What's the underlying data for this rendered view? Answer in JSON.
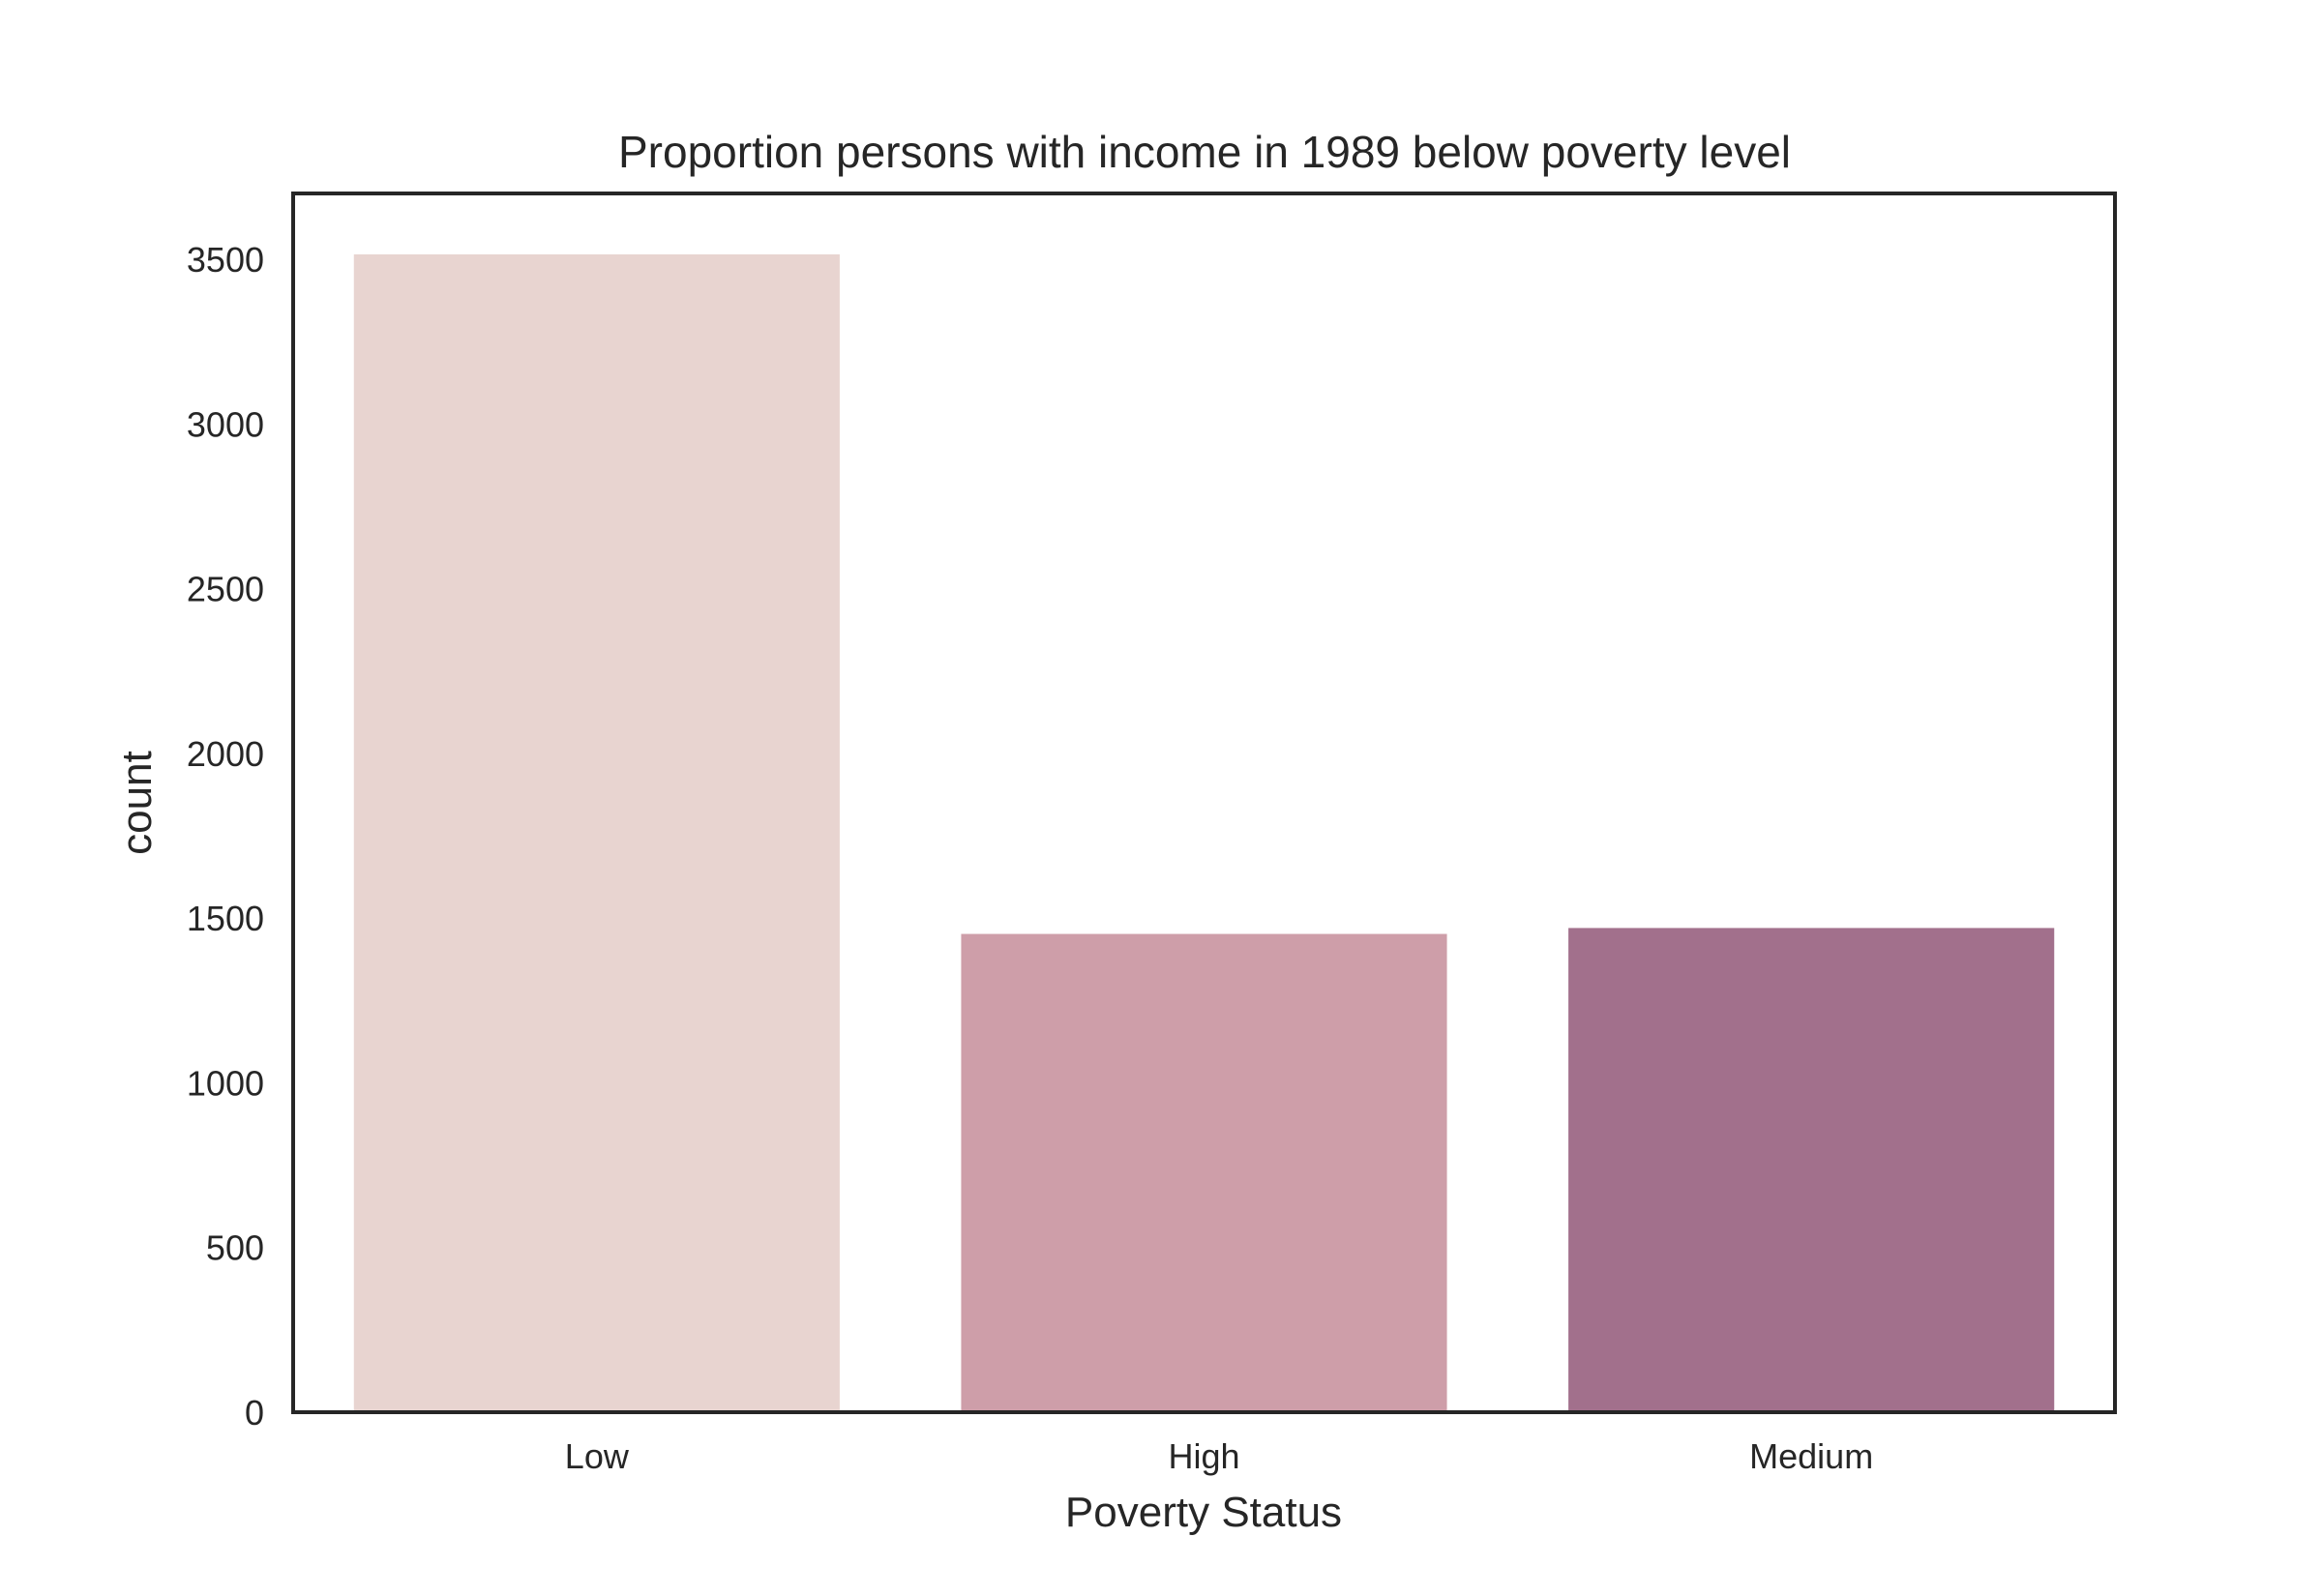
{
  "chart_data": {
    "type": "bar",
    "title": "Proportion persons with income in 1989 below poverty level",
    "xlabel": "Poverty Status",
    "ylabel": "count",
    "categories": [
      "Low",
      "High",
      "Medium"
    ],
    "values": [
      3515,
      1452,
      1470
    ],
    "colors": [
      "#e8d4d0",
      "#ce9ea9",
      "#a2708c"
    ],
    "ylim": [
      0,
      3700
    ],
    "yticks": [
      0,
      500,
      1000,
      1500,
      2000,
      2500,
      3000,
      3500
    ],
    "grid": false,
    "legend": "none",
    "frame_color": "#262626"
  }
}
